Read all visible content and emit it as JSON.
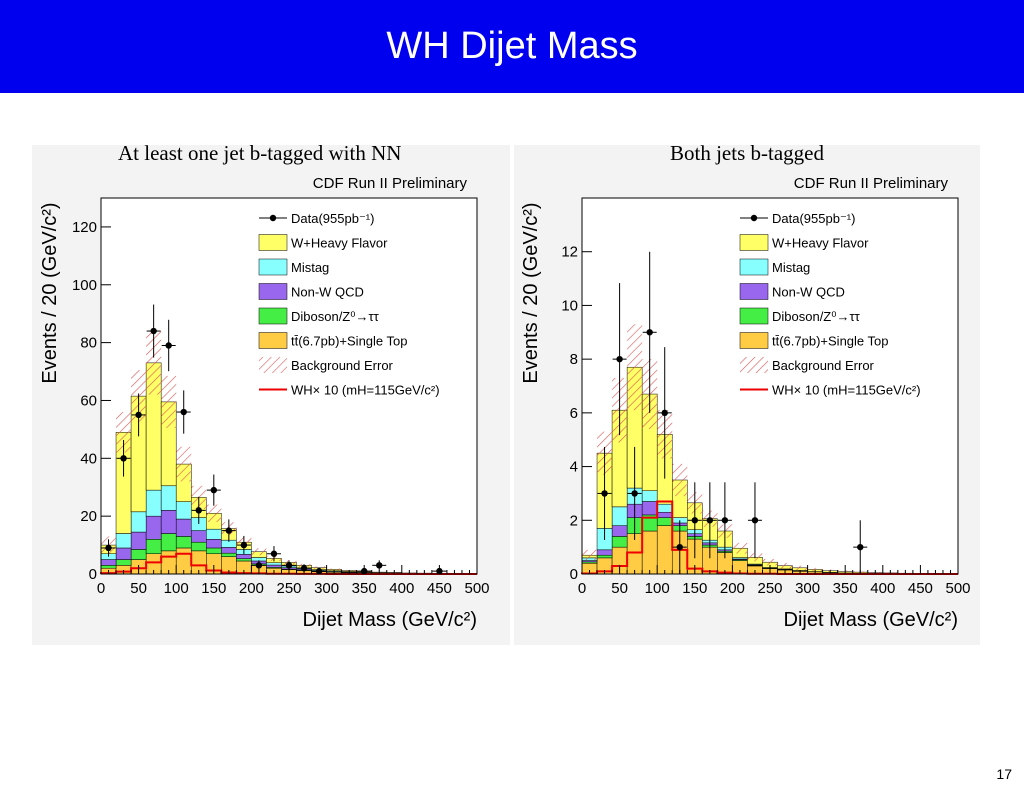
{
  "slide": {
    "title": "WH Dijet Mass",
    "page_number": "17"
  },
  "chart_data": [
    {
      "type": "stacked_histogram",
      "title": "At least one jet b-tagged with NN",
      "subtitle": "CDF Run II Preliminary",
      "xlabel": "Dijet Mass (GeV/c²)",
      "ylabel": "Events / 20 (GeV/c²)",
      "xlim": [
        0,
        500
      ],
      "ylim": [
        0,
        130
      ],
      "xticks": [
        0,
        50,
        100,
        150,
        200,
        250,
        300,
        350,
        400,
        450,
        500
      ],
      "yticks": [
        0,
        20,
        40,
        60,
        80,
        100,
        120
      ],
      "bin_width": 20,
      "bin_edges": [
        0,
        20,
        40,
        60,
        80,
        100,
        120,
        140,
        160,
        180,
        200,
        220,
        240,
        260,
        280,
        300,
        320,
        340,
        360,
        380,
        400,
        420,
        440,
        460,
        480,
        500
      ],
      "legend": [
        "Data(955pb⁻¹)",
        "W+Heavy Flavor",
        "Mistag",
        "Non-W QCD",
        "Diboson/Z⁰→ττ",
        "tt̄(6.7pb)+Single Top",
        "Background Error",
        "WH× 10 (mH=115GeV/c²)"
      ],
      "series": [
        {
          "name": "tt̄(6.7pb)+Single Top",
          "color": "#ffcc44",
          "values": [
            2,
            3,
            5,
            7,
            8,
            9,
            8,
            7,
            6,
            4.5,
            3,
            2,
            1.5,
            1.2,
            0.8,
            0.6,
            0.4,
            0.3,
            0.2,
            0.15,
            0.1,
            0.08,
            0.06,
            0.05,
            0.04
          ]
        },
        {
          "name": "Diboson/Z⁰→ττ",
          "color": "#44ee44",
          "values": [
            1,
            2,
            3.5,
            5,
            6,
            4,
            3,
            2,
            1.2,
            0.8,
            0.5,
            0.3,
            0.2,
            0.1,
            0.1,
            0.05,
            0.05,
            0.03,
            0.02,
            0.02,
            0.01,
            0.01,
            0.01,
            0.01,
            0.01
          ]
        },
        {
          "name": "Non-W QCD",
          "color": "#9966ee",
          "values": [
            2,
            4,
            6,
            8,
            8,
            6,
            4,
            3,
            2,
            1.5,
            1,
            0.8,
            0.5,
            0.4,
            0.3,
            0.2,
            0.2,
            0.1,
            0.1,
            0.1,
            0.05,
            0.05,
            0.05,
            0.03,
            0.03
          ]
        },
        {
          "name": "Mistag",
          "color": "#88ffff",
          "values": [
            2,
            5,
            7,
            9,
            8.5,
            6,
            4.5,
            3.5,
            2.5,
            1.7,
            1.2,
            0.8,
            0.6,
            0.4,
            0.3,
            0.25,
            0.2,
            0.12,
            0.08,
            0.07,
            0.05,
            0.04,
            0.03,
            0.03,
            0.02
          ]
        },
        {
          "name": "W+Heavy Flavor",
          "color": "#ffff66",
          "values": [
            3,
            35,
            40,
            44,
            29,
            13,
            7,
            5.5,
            4,
            2.5,
            2,
            1.5,
            1.2,
            0.9,
            0.7,
            0.5,
            0.35,
            0.3,
            0.25,
            0.2,
            0.15,
            0.12,
            0.1,
            0.08,
            0.06
          ]
        }
      ],
      "background_error": [
        3,
        7,
        9,
        11,
        9,
        6,
        4,
        3,
        2.2,
        1.6,
        1.2,
        0.9,
        0.7,
        0.5,
        0.4,
        0.3,
        0.2,
        0.15,
        0.12,
        0.1,
        0.08,
        0.06,
        0.05,
        0.04,
        0.03
      ],
      "signal": {
        "name": "WH× 10 (mH=115GeV/c²)",
        "color": "#ee0000",
        "values": [
          0.3,
          0.8,
          2,
          4,
          6,
          7,
          3,
          1.2,
          0.5,
          0.3,
          0.2,
          0.1,
          0.1,
          0.05,
          0.05,
          0.02,
          0.02,
          0.01,
          0.01,
          0.01,
          0.01,
          0,
          0,
          0,
          0
        ]
      },
      "data_points": {
        "x": [
          10,
          30,
          50,
          70,
          90,
          110,
          130,
          150,
          170,
          190,
          210,
          230,
          250,
          270,
          290,
          310,
          330,
          350,
          370,
          390,
          410,
          430,
          450,
          470,
          490
        ],
        "y": [
          9,
          40,
          55,
          84,
          79,
          56,
          22,
          29,
          15,
          10,
          3,
          7,
          3,
          2,
          1,
          0,
          0,
          1,
          3,
          0,
          0,
          0,
          1,
          0,
          0
        ]
      }
    },
    {
      "type": "stacked_histogram",
      "title": "Both jets b-tagged",
      "subtitle": "CDF Run II Preliminary",
      "xlabel": "Dijet Mass (GeV/c²)",
      "ylabel": "Events / 20 (GeV/c²)",
      "xlim": [
        0,
        500
      ],
      "ylim": [
        0,
        14
      ],
      "xticks": [
        0,
        50,
        100,
        150,
        200,
        250,
        300,
        350,
        400,
        450,
        500
      ],
      "yticks": [
        0,
        2,
        4,
        6,
        8,
        10,
        12
      ],
      "bin_width": 20,
      "bin_edges": [
        0,
        20,
        40,
        60,
        80,
        100,
        120,
        140,
        160,
        180,
        200,
        220,
        240,
        260,
        280,
        300,
        320,
        340,
        360,
        380,
        400,
        420,
        440,
        460,
        480,
        500
      ],
      "legend": [
        "Data(955pb⁻¹)",
        "W+Heavy Flavor",
        "Mistag",
        "Non-W QCD",
        "Diboson/Z⁰→ττ",
        "tt̄(6.7pb)+Single Top",
        "Background Error",
        "WH× 10 (mH=115GeV/c²)"
      ],
      "series": [
        {
          "name": "tt̄(6.7pb)+Single Top",
          "color": "#ffcc44",
          "values": [
            0.4,
            0.6,
            1.0,
            1.5,
            1.6,
            1.8,
            1.6,
            1.3,
            1.0,
            0.8,
            0.5,
            0.3,
            0.2,
            0.15,
            0.1,
            0.08,
            0.05,
            0.04,
            0.03,
            0.02,
            0.02,
            0.01,
            0.01,
            0.01,
            0.01
          ]
        },
        {
          "name": "Diboson/Z⁰→ττ",
          "color": "#44ee44",
          "values": [
            0.05,
            0.1,
            0.4,
            0.6,
            0.6,
            0.3,
            0.2,
            0.1,
            0.08,
            0.05,
            0.03,
            0.02,
            0.01,
            0.01,
            0.01,
            0,
            0,
            0,
            0,
            0,
            0,
            0,
            0,
            0,
            0
          ]
        },
        {
          "name": "Non-W QCD",
          "color": "#9966ee",
          "values": [
            0.05,
            0.2,
            0.4,
            0.5,
            0.5,
            0.2,
            0.1,
            0.1,
            0.08,
            0.05,
            0.03,
            0.02,
            0.01,
            0.01,
            0.01,
            0,
            0,
            0,
            0,
            0,
            0,
            0,
            0,
            0,
            0
          ]
        },
        {
          "name": "Mistag",
          "color": "#88ffff",
          "values": [
            0.1,
            0.8,
            0.7,
            0.6,
            0.4,
            0.3,
            0.2,
            0.15,
            0.1,
            0.1,
            0.05,
            0.03,
            0.02,
            0.02,
            0.01,
            0.01,
            0.01,
            0,
            0,
            0,
            0,
            0,
            0,
            0,
            0
          ]
        },
        {
          "name": "W+Heavy Flavor",
          "color": "#ffff66",
          "values": [
            0.1,
            2.8,
            3.6,
            4.5,
            3.6,
            2.6,
            1.4,
            1.0,
            0.8,
            0.6,
            0.35,
            0.25,
            0.2,
            0.12,
            0.1,
            0.08,
            0.06,
            0.05,
            0.04,
            0.03,
            0.02,
            0.02,
            0.01,
            0.01,
            0.01
          ]
        }
      ],
      "background_error": [
        0.2,
        0.8,
        1.2,
        1.6,
        1.3,
        0.9,
        0.6,
        0.4,
        0.3,
        0.25,
        0.2,
        0.15,
        0.12,
        0.1,
        0.08,
        0.06,
        0.05,
        0.04,
        0.03,
        0.02,
        0.02,
        0.01,
        0.01,
        0.01,
        0.01
      ],
      "signal": {
        "name": "WH× 10 (mH=115GeV/c²)",
        "color": "#ee0000",
        "values": [
          0.02,
          0.1,
          0.3,
          0.8,
          2.1,
          2.7,
          0.9,
          0.2,
          0.1,
          0.05,
          0.02,
          0.01,
          0.01,
          0,
          0,
          0,
          0,
          0,
          0,
          0,
          0,
          0,
          0,
          0,
          0
        ]
      },
      "data_points": {
        "x": [
          10,
          30,
          50,
          70,
          90,
          110,
          130,
          150,
          170,
          190,
          210,
          230,
          250,
          270,
          290,
          310,
          330,
          350,
          370,
          390,
          410,
          430,
          450,
          470,
          490
        ],
        "y": [
          0,
          3,
          8,
          3,
          9,
          6,
          1,
          2,
          2,
          2,
          0,
          2,
          0,
          0,
          0,
          0,
          0,
          0,
          1,
          0,
          0,
          0,
          0,
          0,
          0
        ]
      }
    }
  ]
}
